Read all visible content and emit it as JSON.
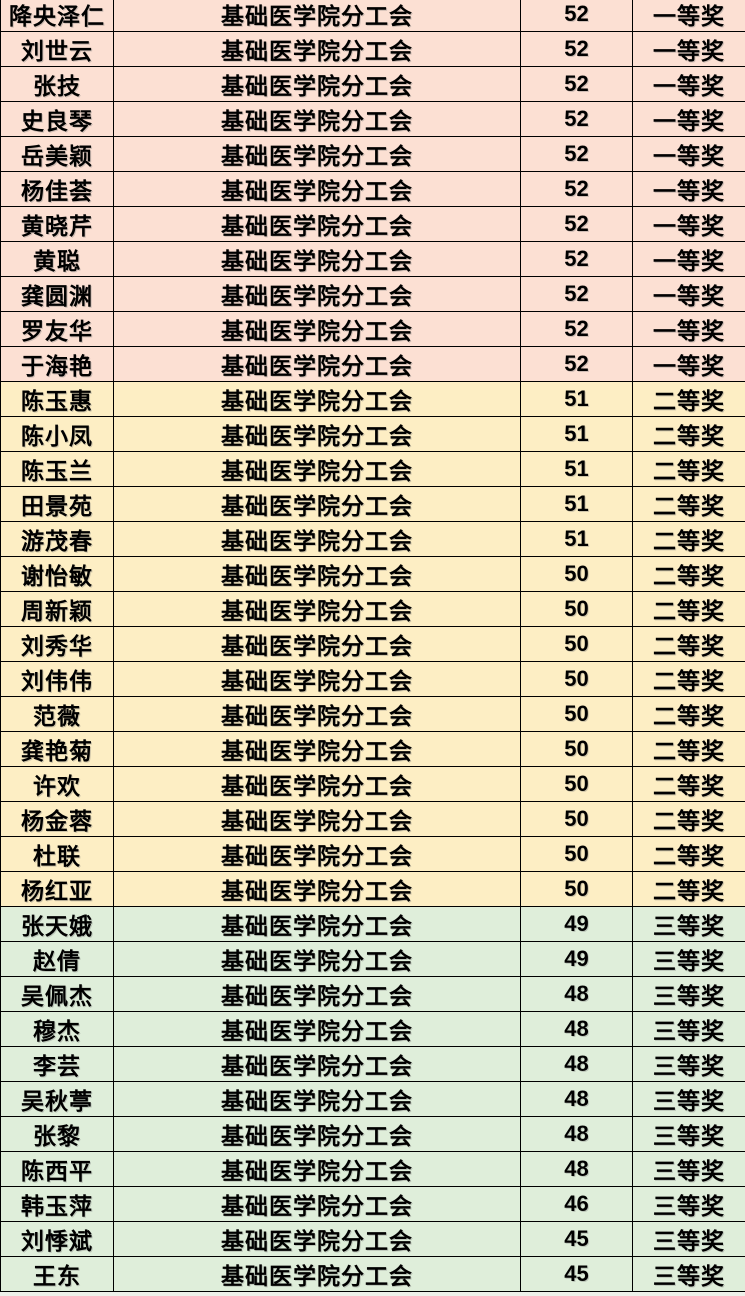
{
  "table": {
    "description": "award-list-table",
    "tier_colors": {
      "1": "#fce0d3",
      "2": "#fdeec4",
      "3": "#dfeeda"
    },
    "border_color": "#000000",
    "text_color": "#000000",
    "rows": [
      {
        "name": "降央泽仁",
        "union": "基础医学院分工会",
        "score": "52",
        "award": "一等奖",
        "tier": 1
      },
      {
        "name": "刘世云",
        "union": "基础医学院分工会",
        "score": "52",
        "award": "一等奖",
        "tier": 1
      },
      {
        "name": "张技",
        "union": "基础医学院分工会",
        "score": "52",
        "award": "一等奖",
        "tier": 1
      },
      {
        "name": "史良琴",
        "union": "基础医学院分工会",
        "score": "52",
        "award": "一等奖",
        "tier": 1
      },
      {
        "name": "岳美颖",
        "union": "基础医学院分工会",
        "score": "52",
        "award": "一等奖",
        "tier": 1
      },
      {
        "name": "杨佳荟",
        "union": "基础医学院分工会",
        "score": "52",
        "award": "一等奖",
        "tier": 1
      },
      {
        "name": "黄晓芹",
        "union": "基础医学院分工会",
        "score": "52",
        "award": "一等奖",
        "tier": 1
      },
      {
        "name": "黄聪",
        "union": "基础医学院分工会",
        "score": "52",
        "award": "一等奖",
        "tier": 1
      },
      {
        "name": "龚圆渊",
        "union": "基础医学院分工会",
        "score": "52",
        "award": "一等奖",
        "tier": 1
      },
      {
        "name": "罗友华",
        "union": "基础医学院分工会",
        "score": "52",
        "award": "一等奖",
        "tier": 1
      },
      {
        "name": "于海艳",
        "union": "基础医学院分工会",
        "score": "52",
        "award": "一等奖",
        "tier": 1
      },
      {
        "name": "陈玉惠",
        "union": "基础医学院分工会",
        "score": "51",
        "award": "二等奖",
        "tier": 2
      },
      {
        "name": "陈小凤",
        "union": "基础医学院分工会",
        "score": "51",
        "award": "二等奖",
        "tier": 2
      },
      {
        "name": "陈玉兰",
        "union": "基础医学院分工会",
        "score": "51",
        "award": "二等奖",
        "tier": 2
      },
      {
        "name": "田景苑",
        "union": "基础医学院分工会",
        "score": "51",
        "award": "二等奖",
        "tier": 2
      },
      {
        "name": "游茂春",
        "union": "基础医学院分工会",
        "score": "51",
        "award": "二等奖",
        "tier": 2
      },
      {
        "name": "谢怡敏",
        "union": "基础医学院分工会",
        "score": "50",
        "award": "二等奖",
        "tier": 2
      },
      {
        "name": "周新颖",
        "union": "基础医学院分工会",
        "score": "50",
        "award": "二等奖",
        "tier": 2
      },
      {
        "name": "刘秀华",
        "union": "基础医学院分工会",
        "score": "50",
        "award": "二等奖",
        "tier": 2
      },
      {
        "name": "刘伟伟",
        "union": "基础医学院分工会",
        "score": "50",
        "award": "二等奖",
        "tier": 2
      },
      {
        "name": "范薇",
        "union": "基础医学院分工会",
        "score": "50",
        "award": "二等奖",
        "tier": 2
      },
      {
        "name": "龚艳菊",
        "union": "基础医学院分工会",
        "score": "50",
        "award": "二等奖",
        "tier": 2
      },
      {
        "name": "许欢",
        "union": "基础医学院分工会",
        "score": "50",
        "award": "二等奖",
        "tier": 2
      },
      {
        "name": "杨金蓉",
        "union": "基础医学院分工会",
        "score": "50",
        "award": "二等奖",
        "tier": 2
      },
      {
        "name": "杜联",
        "union": "基础医学院分工会",
        "score": "50",
        "award": "二等奖",
        "tier": 2
      },
      {
        "name": "杨红亚",
        "union": "基础医学院分工会",
        "score": "50",
        "award": "二等奖",
        "tier": 2
      },
      {
        "name": "张天娥",
        "union": "基础医学院分工会",
        "score": "49",
        "award": "三等奖",
        "tier": 3
      },
      {
        "name": "赵倩",
        "union": "基础医学院分工会",
        "score": "49",
        "award": "三等奖",
        "tier": 3
      },
      {
        "name": "吴佩杰",
        "union": "基础医学院分工会",
        "score": "48",
        "award": "三等奖",
        "tier": 3
      },
      {
        "name": "穆杰",
        "union": "基础医学院分工会",
        "score": "48",
        "award": "三等奖",
        "tier": 3
      },
      {
        "name": "李芸",
        "union": "基础医学院分工会",
        "score": "48",
        "award": "三等奖",
        "tier": 3
      },
      {
        "name": "吴秋葶",
        "union": "基础医学院分工会",
        "score": "48",
        "award": "三等奖",
        "tier": 3
      },
      {
        "name": "张黎",
        "union": "基础医学院分工会",
        "score": "48",
        "award": "三等奖",
        "tier": 3
      },
      {
        "name": "陈西平",
        "union": "基础医学院分工会",
        "score": "48",
        "award": "三等奖",
        "tier": 3
      },
      {
        "name": "韩玉萍",
        "union": "基础医学院分工会",
        "score": "46",
        "award": "三等奖",
        "tier": 3
      },
      {
        "name": "刘悸斌",
        "union": "基础医学院分工会",
        "score": "45",
        "award": "三等奖",
        "tier": 3
      },
      {
        "name": "王东",
        "union": "基础医学院分工会",
        "score": "45",
        "award": "三等奖",
        "tier": 3
      }
    ]
  }
}
